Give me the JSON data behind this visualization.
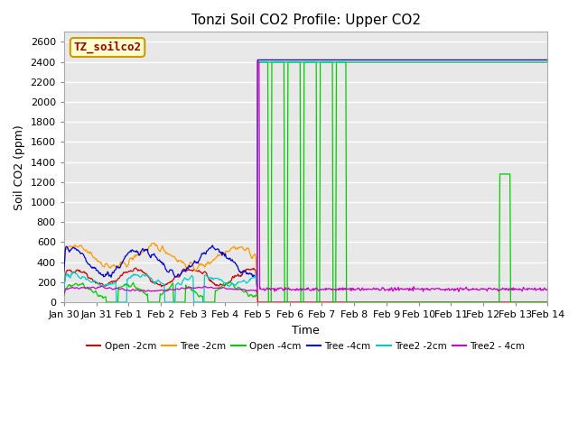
{
  "title": "Tonzi Soil CO2 Profile: Upper CO2",
  "ylabel": "Soil CO2 (ppm)",
  "xlabel": "Time",
  "ylim": [
    0,
    2700
  ],
  "yticks": [
    0,
    200,
    400,
    600,
    800,
    1000,
    1200,
    1400,
    1600,
    1800,
    2000,
    2200,
    2400,
    2600
  ],
  "xtick_labels": [
    "Jan 30",
    "Jan 31",
    "Feb 1",
    "Feb 2",
    "Feb 3",
    "Feb 4",
    "Feb 5",
    "Feb 6",
    "Feb 7",
    "Feb 8",
    "Feb 9",
    "Feb 10",
    "Feb 11",
    "Feb 12",
    "Feb 13",
    "Feb 14"
  ],
  "bg_color": "#e8e8e8",
  "legend_label": "TZ_soilco2",
  "legend_bg": "#ffffcc",
  "legend_border": "#cc9900",
  "colors": [
    "#cc0000",
    "#ff9900",
    "#00cc00",
    "#0000cc",
    "#00cccc",
    "#cc00cc"
  ],
  "series_names": [
    "Open -2cm",
    "Tree -2cm",
    "Open -4cm",
    "Tree -4cm",
    "Tree2 -2cm",
    "Tree2 - 4cm"
  ],
  "title_fontsize": 11,
  "axis_label_fontsize": 9,
  "tick_fontsize": 8
}
